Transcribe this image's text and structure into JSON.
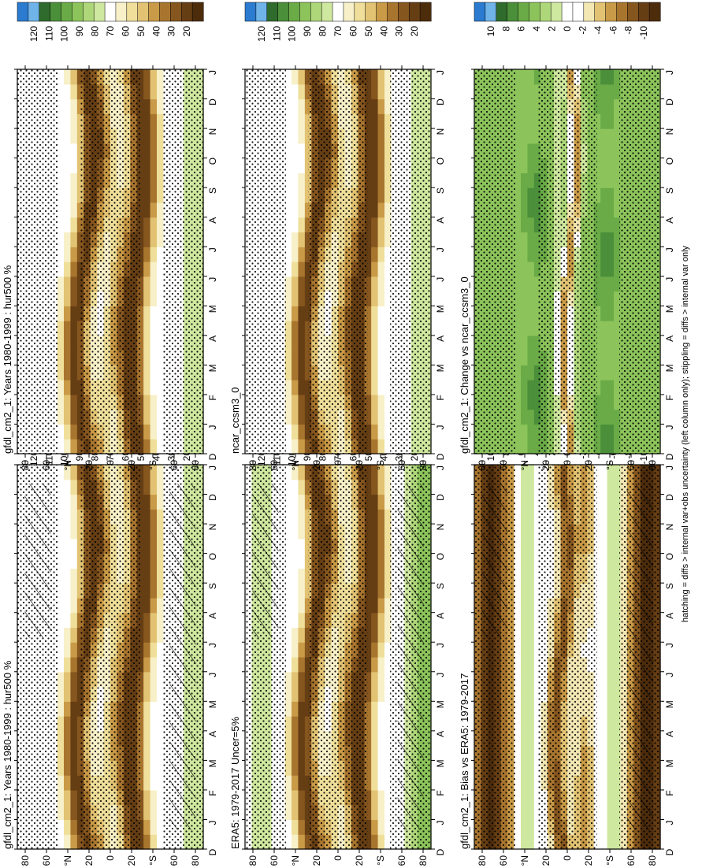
{
  "footnote": "hatching = diffs > internal var+obs uncertainty (left column only); stippling = diffs > internal var only",
  "colors": {
    "abs_scale": [
      "#2b7bd0",
      "#6fb3e8",
      "#2f6b2c",
      "#4b8f3a",
      "#6aab47",
      "#8cc45b",
      "#aed77a",
      "#cfe89f",
      "#ffffff",
      "#f7f0c8",
      "#efdf9a",
      "#e2c373",
      "#c99a47",
      "#a8752f",
      "#86561f",
      "#663e14",
      "#4d2c0c"
    ],
    "diff_scale": [
      "#2b7bd0",
      "#6fb3e8",
      "#2f6b2c",
      "#4b8f3a",
      "#6aab47",
      "#8cc45b",
      "#aed77a",
      "#cfe89f",
      "#ffffff",
      "#ffffff",
      "#f3e7b4",
      "#e2c373",
      "#c99a47",
      "#a8752f",
      "#86561f",
      "#663e14",
      "#4d2c0c"
    ]
  },
  "chart_data": [
    {
      "type": "heatmap",
      "title": "gfdl_cm2_1: Years 1980-1999 : hur500 %",
      "x_ticks": [
        "D",
        "J",
        "F",
        "M",
        "A",
        "M",
        "J",
        "J",
        "A",
        "S",
        "O",
        "N",
        "D",
        "J"
      ],
      "y_ticks": [
        "80",
        "60",
        "°N",
        "20",
        "0",
        "20",
        "°S",
        "60",
        "80"
      ],
      "x": [
        "J",
        "F",
        "M",
        "A",
        "M",
        "J",
        "J",
        "A",
        "S",
        "O",
        "N",
        "D"
      ],
      "y": [
        -80,
        -60,
        -40,
        -20,
        0,
        20,
        40,
        60,
        80
      ],
      "colorbar_labels": [
        "120",
        "110",
        "100",
        "90",
        "80",
        "70",
        "60",
        "50",
        "40",
        "30",
        "20"
      ],
      "hatching": true,
      "stippling": true
    },
    {
      "type": "heatmap",
      "title": "gfdl_cm2_1: Years 1980-1999 : hur500 %",
      "x_ticks": [
        "D",
        "J",
        "F",
        "M",
        "A",
        "M",
        "J",
        "J",
        "A",
        "S",
        "O",
        "N",
        "D",
        "J"
      ],
      "y_ticks": [
        "80",
        "60",
        "°N",
        "20",
        "0",
        "20",
        "°S",
        "60",
        "80"
      ],
      "x": [
        "J",
        "F",
        "M",
        "A",
        "M",
        "J",
        "J",
        "A",
        "S",
        "O",
        "N",
        "D"
      ],
      "y": [
        -80,
        -60,
        -40,
        -20,
        0,
        20,
        40,
        60,
        80
      ],
      "colorbar_labels": [
        "120",
        "110",
        "100",
        "90",
        "80",
        "70",
        "60",
        "50",
        "40",
        "30",
        "20"
      ],
      "hatching": false,
      "stippling": true
    },
    {
      "type": "heatmap",
      "title": "ERA5: 1979-2017 Uncer=5%",
      "x_ticks": [
        "D",
        "J",
        "F",
        "M",
        "A",
        "M",
        "J",
        "J",
        "A",
        "S",
        "O",
        "N",
        "D",
        "J"
      ],
      "y_ticks": [
        "80",
        "60",
        "°N",
        "20",
        "0",
        "20",
        "°S",
        "60",
        "80"
      ],
      "x": [
        "J",
        "F",
        "M",
        "A",
        "M",
        "J",
        "J",
        "A",
        "S",
        "O",
        "N",
        "D"
      ],
      "y": [
        -80,
        -60,
        -40,
        -20,
        0,
        20,
        40,
        60,
        80
      ],
      "colorbar_labels": [
        "120",
        "110",
        "100",
        "90",
        "80",
        "70",
        "60",
        "50",
        "40",
        "30",
        "20"
      ],
      "hatching": true,
      "stippling": true
    },
    {
      "type": "heatmap",
      "title": "ncar_ccsm3_0",
      "x_ticks": [
        "D",
        "J",
        "F",
        "M",
        "A",
        "M",
        "J",
        "J",
        "A",
        "S",
        "O",
        "N",
        "D",
        "J"
      ],
      "y_ticks": [
        "80",
        "60",
        "°N",
        "20",
        "0",
        "20",
        "°S",
        "60",
        "80"
      ],
      "x": [
        "J",
        "F",
        "M",
        "A",
        "M",
        "J",
        "J",
        "A",
        "S",
        "O",
        "N",
        "D"
      ],
      "y": [
        -80,
        -60,
        -40,
        -20,
        0,
        20,
        40,
        60,
        80
      ],
      "colorbar_labels": [
        "120",
        "110",
        "100",
        "90",
        "80",
        "70",
        "60",
        "50",
        "40",
        "30",
        "20"
      ],
      "hatching": false,
      "stippling": true
    },
    {
      "type": "heatmap",
      "title": "gfdl_cm2_1: Bias vs ERA5: 1979-2017",
      "x_ticks": [
        "D",
        "J",
        "F",
        "M",
        "A",
        "M",
        "J",
        "J",
        "A",
        "S",
        "O",
        "N",
        "D",
        "J"
      ],
      "y_ticks": [
        "80",
        "60",
        "°N",
        "20",
        "0",
        "20",
        "°S",
        "60",
        "80"
      ],
      "x": [
        "J",
        "F",
        "M",
        "A",
        "M",
        "J",
        "J",
        "A",
        "S",
        "O",
        "N",
        "D"
      ],
      "y": [
        -80,
        -60,
        -40,
        -20,
        0,
        20,
        40,
        60,
        80
      ],
      "colorbar_labels": [
        "10",
        "8",
        "6",
        "4",
        "2",
        "0",
        "-2",
        "-4",
        "-6",
        "-8",
        "-10"
      ],
      "hatching": true,
      "stippling": true
    },
    {
      "type": "heatmap",
      "title": "gfdl_cm2_1: Change vs ncar_ccsm3_0",
      "x_ticks": [
        "D",
        "J",
        "F",
        "M",
        "A",
        "M",
        "J",
        "J",
        "A",
        "S",
        "O",
        "N",
        "D",
        "J"
      ],
      "y_ticks": [
        "80",
        "60",
        "°N",
        "20",
        "0",
        "20",
        "°S",
        "60",
        "80"
      ],
      "x": [
        "J",
        "F",
        "M",
        "A",
        "M",
        "J",
        "J",
        "A",
        "S",
        "O",
        "N",
        "D"
      ],
      "y": [
        -80,
        -60,
        -40,
        -20,
        0,
        20,
        40,
        60,
        80
      ],
      "colorbar_labels": [
        "10",
        "8",
        "6",
        "4",
        "2",
        "0",
        "-2",
        "-4",
        "-6",
        "-8",
        "-10"
      ],
      "hatching": false,
      "stippling": true
    }
  ]
}
